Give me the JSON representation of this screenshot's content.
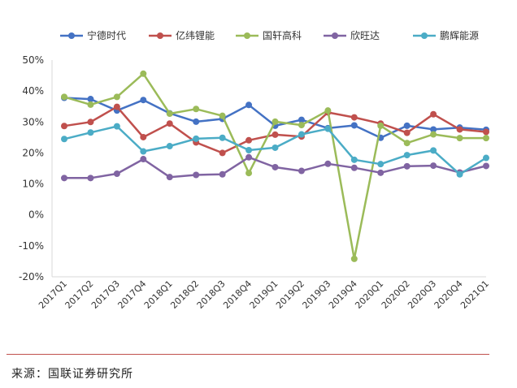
{
  "chart_data": {
    "type": "line",
    "title": "",
    "xlabel": "",
    "ylabel": "",
    "ylim": [
      -0.2,
      0.5
    ],
    "yticks": [
      -0.2,
      -0.1,
      0,
      0.1,
      0.2,
      0.3,
      0.4,
      0.5
    ],
    "ytick_labels": [
      "-20%",
      "-10%",
      "0%",
      "10%",
      "20%",
      "30%",
      "40%",
      "50%"
    ],
    "grid": false,
    "legend_position": "top",
    "categories": [
      "2017Q1",
      "2017Q2",
      "2017Q3",
      "2017Q4",
      "2018Q1",
      "2018Q2",
      "2018Q3",
      "2018Q4",
      "2019Q1",
      "2019Q2",
      "2019Q3",
      "2019Q4",
      "2020Q1",
      "2020Q2",
      "2020Q3",
      "2020Q4",
      "2021Q1"
    ],
    "series": [
      {
        "name": "宁德时代",
        "color": "#4472c4",
        "values": [
          0.378,
          0.374,
          0.337,
          0.371,
          0.328,
          0.301,
          0.31,
          0.355,
          0.288,
          0.307,
          0.28,
          0.289,
          0.249,
          0.288,
          0.276,
          0.282,
          0.275
        ]
      },
      {
        "name": "亿纬锂能",
        "color": "#c0504d",
        "values": [
          0.287,
          0.3,
          0.349,
          0.251,
          0.295,
          0.234,
          0.2,
          0.241,
          0.259,
          0.253,
          0.331,
          0.315,
          0.295,
          0.265,
          0.325,
          0.276,
          0.268
        ]
      },
      {
        "name": "国轩高科",
        "color": "#9bbb59",
        "values": [
          0.381,
          0.356,
          0.381,
          0.456,
          0.327,
          0.342,
          0.32,
          0.135,
          0.301,
          0.29,
          0.337,
          -0.142,
          0.288,
          0.232,
          0.26,
          0.248,
          0.248
        ]
      },
      {
        "name": "欣旺达",
        "color": "#8064a2",
        "values": [
          0.119,
          0.119,
          0.133,
          0.18,
          0.122,
          0.129,
          0.131,
          0.186,
          0.154,
          0.142,
          0.165,
          0.152,
          0.136,
          0.157,
          0.159,
          0.137,
          0.158
        ]
      },
      {
        "name": "鹏辉能源",
        "color": "#4bacc6",
        "values": [
          0.245,
          0.266,
          0.286,
          0.205,
          0.222,
          0.246,
          0.249,
          0.209,
          0.217,
          0.26,
          0.278,
          0.178,
          0.164,
          0.193,
          0.208,
          0.131,
          0.184
        ]
      }
    ]
  },
  "source": {
    "text": "来源：国联证券研究所"
  }
}
